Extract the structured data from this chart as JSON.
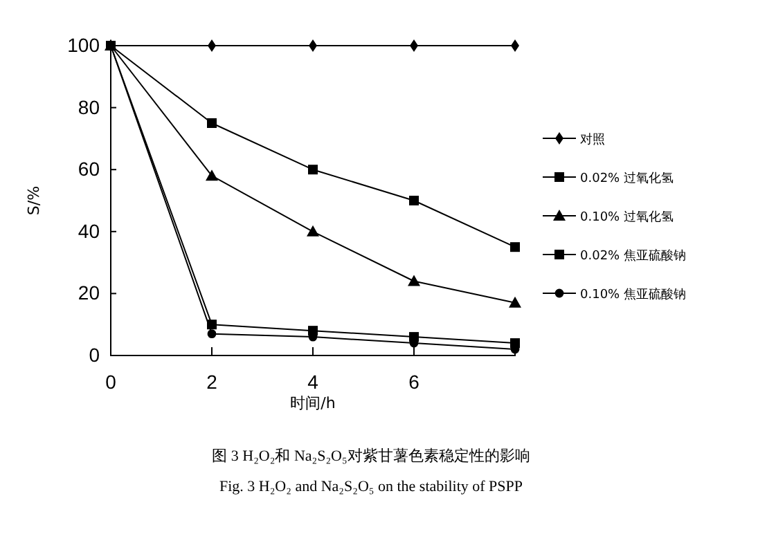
{
  "chart_data": {
    "type": "line",
    "xlabel": "时间/h",
    "ylabel": "S/%",
    "x": [
      0,
      2,
      4,
      6,
      8
    ],
    "series": [
      {
        "name": "对照",
        "color": "#000000",
        "marker": "diamond",
        "values": [
          100,
          100,
          100,
          100,
          100
        ]
      },
      {
        "name": "0.02% 过氧化氢",
        "color": "#000000",
        "marker": "square",
        "values": [
          100,
          75,
          60,
          50,
          35
        ]
      },
      {
        "name": "0.10% 过氧化氢",
        "color": "#000000",
        "marker": "triangle",
        "values": [
          100,
          58,
          40,
          24,
          17
        ]
      },
      {
        "name": "0.02% 焦亚硫酸钠",
        "color": "#000000",
        "marker": "square",
        "values": [
          100,
          10,
          8,
          6,
          4
        ]
      },
      {
        "name": "0.10% 焦亚硫酸钠",
        "color": "#000000",
        "marker": "circle",
        "values": [
          100,
          7,
          6,
          4,
          2
        ]
      }
    ],
    "xlim": [
      0,
      8
    ],
    "xticks": [
      0,
      2,
      4,
      6
    ],
    "ylim": [
      0,
      100
    ],
    "yticks": [
      0,
      20,
      40,
      60,
      80,
      100
    ],
    "grid": false,
    "legend": "right",
    "line_style": "solid",
    "annotations": [
      "图 3 H₂O₂和 Na₂S₂O₅对紫甘薯色素稳定性的影响",
      "Fig. 3   H₂O₂ and Na₂S₂O₅ on the stability of PSPP"
    ]
  }
}
